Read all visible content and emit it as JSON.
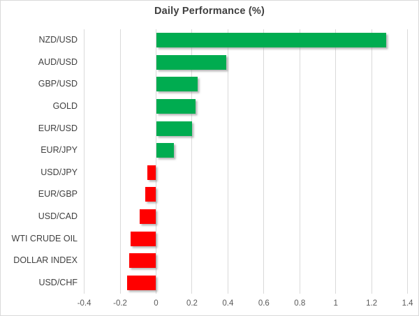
{
  "chart_data": {
    "type": "bar",
    "orientation": "horizontal",
    "title": "Daily Performance (%)",
    "categories": [
      "NZD/USD",
      "AUD/USD",
      "GBP/USD",
      "GOLD",
      "EUR/USD",
      "EUR/JPY",
      "USD/JPY",
      "EUR/GBP",
      "USD/CAD",
      "WTI CRUDE OIL",
      "DOLLAR INDEX",
      "USD/CHF"
    ],
    "values": [
      1.28,
      0.39,
      0.23,
      0.22,
      0.2,
      0.1,
      -0.05,
      -0.06,
      -0.09,
      -0.14,
      -0.15,
      -0.16
    ],
    "xlim": [
      -0.4,
      1.4
    ],
    "xticks": [
      -0.4,
      -0.2,
      0,
      0.2,
      0.4,
      0.6,
      0.8,
      1,
      1.2,
      1.4
    ],
    "xtick_labels": [
      "-0.4",
      "-0.2",
      "0",
      "0.2",
      "0.4",
      "0.6",
      "0.8",
      "1",
      "1.2",
      "1.4"
    ],
    "grid": "vertical-only",
    "legend": "none",
    "colors": {
      "positive_bar": "#00AC50",
      "negative_bar": "#FF0000",
      "gridline": "#D9D9D9",
      "title_text": "#3F3F3F",
      "category_text": "#404040",
      "tick_text": "#595959",
      "background": "#FFFFFF",
      "border": "#D9D9D9"
    }
  }
}
